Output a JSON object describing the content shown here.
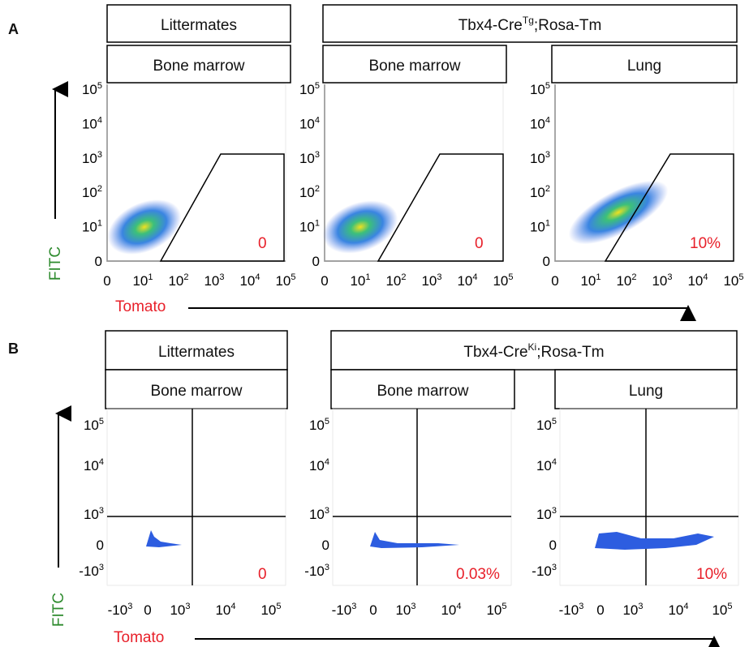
{
  "panel_a": {
    "letter": "A",
    "group_littermates": "Littermates",
    "group_tg_base": "Tbx4-Cre",
    "group_tg_sup": "Tg",
    "group_tg_rest": ";Rosa-Tm",
    "tissues": [
      "Bone marrow",
      "Bone marrow",
      "Lung"
    ],
    "y_axis_title": "FITC",
    "x_axis_title": "Tomato",
    "percentages": [
      "0",
      "0",
      "10%"
    ]
  },
  "panel_b": {
    "letter": "B",
    "group_littermates": "Littermates",
    "group_ki_base": "Tbx4-Cre",
    "group_ki_sup": "Ki",
    "group_ki_rest": ";Rosa-Tm",
    "tissues": [
      "Bone marrow",
      "Bone marrow",
      "Lung"
    ],
    "y_axis_title": "FITC",
    "x_axis_title": "Tomato",
    "percentages": [
      "0",
      "0.03%",
      "10%"
    ]
  },
  "colors": {
    "percent": "#e8202a",
    "fitc": "#2e8b2e",
    "tomato": "#e8202a",
    "density_low": "#3a5bd9",
    "density_high": "#f0e020"
  },
  "chart_data": [
    {
      "type": "scatter",
      "title": "Littermates — Bone marrow",
      "xlabel": "Tomato",
      "ylabel": "FITC",
      "scale": "biexponential",
      "x_tick_labels": [
        "0",
        "10^1",
        "10^2",
        "10^3",
        "10^4",
        "10^5"
      ],
      "y_tick_labels": [
        "0",
        "10^1",
        "10^2",
        "10^3",
        "10^4",
        "10^5"
      ],
      "xlim": [
        0,
        100000
      ],
      "ylim": [
        0,
        100000
      ],
      "gate_label": "0",
      "gate_percent": 0,
      "population_center": {
        "tomato": 10,
        "fitc": 10
      }
    },
    {
      "type": "scatter",
      "title": "Tbx4-CreTg;Rosa-Tm — Bone marrow",
      "xlabel": "Tomato",
      "ylabel": "FITC",
      "scale": "biexponential",
      "x_tick_labels": [
        "0",
        "10^1",
        "10^2",
        "10^3",
        "10^4",
        "10^5"
      ],
      "y_tick_labels": [
        "0",
        "10^1",
        "10^2",
        "10^3",
        "10^4",
        "10^5"
      ],
      "xlim": [
        0,
        100000
      ],
      "ylim": [
        0,
        100000
      ],
      "gate_label": "0",
      "gate_percent": 0,
      "population_center": {
        "tomato": 8,
        "fitc": 10
      }
    },
    {
      "type": "scatter",
      "title": "Tbx4-CreTg;Rosa-Tm — Lung",
      "xlabel": "Tomato",
      "ylabel": "FITC",
      "scale": "biexponential",
      "x_tick_labels": [
        "0",
        "10^1",
        "10^2",
        "10^3",
        "10^4",
        "10^5"
      ],
      "y_tick_labels": [
        "0",
        "10^1",
        "10^2",
        "10^3",
        "10^4",
        "10^5"
      ],
      "xlim": [
        0,
        100000
      ],
      "ylim": [
        0,
        100000
      ],
      "gate_label": "10%",
      "gate_percent": 10,
      "population_center": {
        "tomato": 80,
        "fitc": 30
      }
    },
    {
      "type": "scatter",
      "title": "Littermates — Bone marrow",
      "xlabel": "Tomato",
      "ylabel": "FITC",
      "scale": "biexponential",
      "x_tick_labels": [
        "-10^3",
        "0",
        "10^3",
        "10^4",
        "10^5"
      ],
      "y_tick_labels": [
        "10^5",
        "10^4",
        "10^3",
        "0",
        "-10^3"
      ],
      "quadrant_lines": {
        "tomato": 2000,
        "fitc": 1000
      },
      "gate_label": "0",
      "gate_percent": 0
    },
    {
      "type": "scatter",
      "title": "Tbx4-CreKi;Rosa-Tm — Bone marrow",
      "xlabel": "Tomato",
      "ylabel": "FITC",
      "scale": "biexponential",
      "x_tick_labels": [
        "-10^3",
        "0",
        "10^3",
        "10^4",
        "10^5"
      ],
      "y_tick_labels": [
        "10^5",
        "10^4",
        "10^3",
        "0",
        "-10^3"
      ],
      "quadrant_lines": {
        "tomato": 2000,
        "fitc": 1000
      },
      "gate_label": "0.03%",
      "gate_percent": 0.03
    },
    {
      "type": "scatter",
      "title": "Tbx4-CreKi;Rosa-Tm — Lung",
      "xlabel": "Tomato",
      "ylabel": "FITC",
      "scale": "biexponential",
      "x_tick_labels": [
        "-10^3",
        "0",
        "10^3",
        "10^4",
        "10^5"
      ],
      "y_tick_labels": [
        "10^5",
        "10^4",
        "10^3",
        "0",
        "-10^3"
      ],
      "quadrant_lines": {
        "tomato": 2000,
        "fitc": 1000
      },
      "gate_label": "10%",
      "gate_percent": 10
    }
  ]
}
